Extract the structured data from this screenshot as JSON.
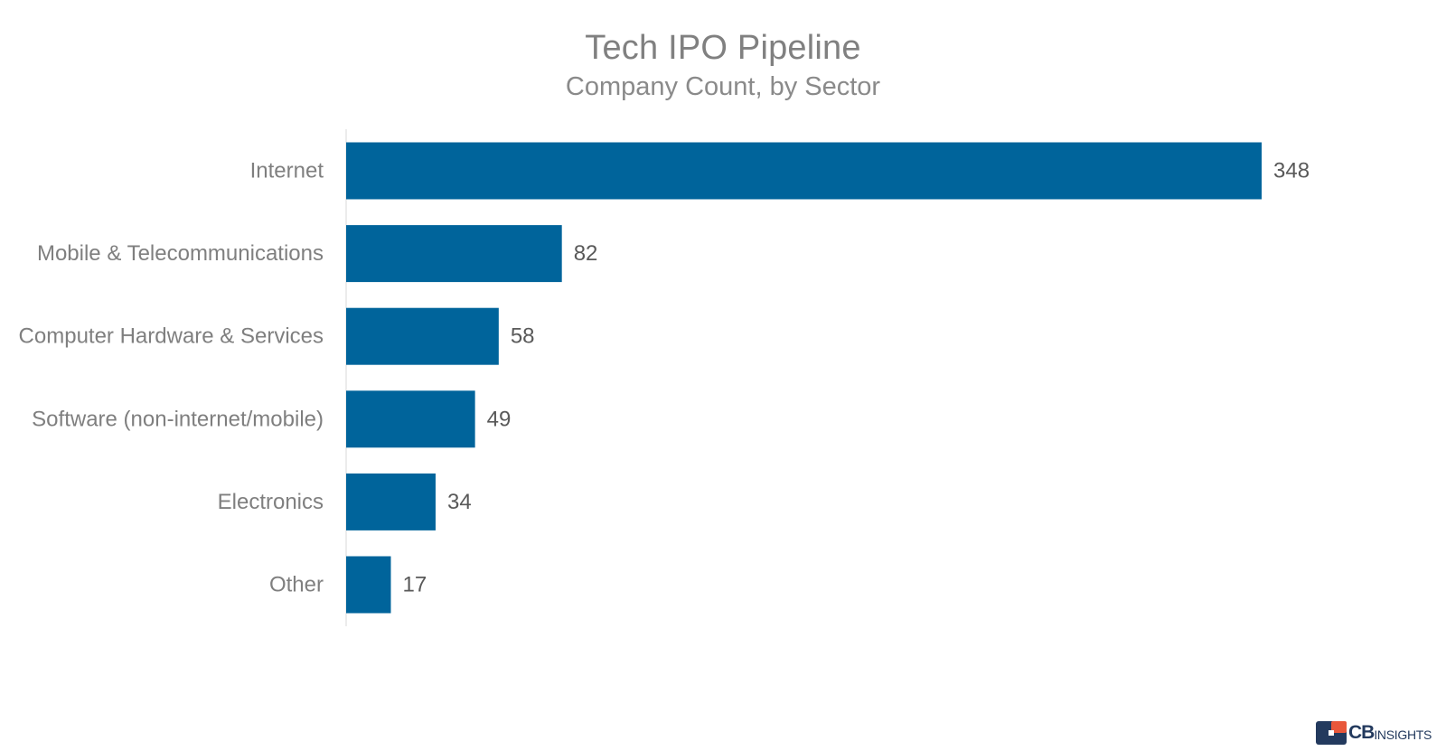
{
  "chart_data": {
    "type": "bar",
    "orientation": "horizontal",
    "title": "Tech IPO Pipeline",
    "subtitle": "Company Count, by Sector",
    "categories": [
      "Internet",
      "Mobile & Telecommunications",
      "Computer Hardware & Services",
      "Software (non-internet/mobile)",
      "Electronics",
      "Other"
    ],
    "values": [
      348,
      82,
      58,
      49,
      34,
      17
    ],
    "xlim": [
      0,
      348
    ],
    "data_labels": true,
    "grid": false,
    "legend": "none",
    "bar_color": "#00649b",
    "label_color": "#7f7f7f",
    "value_label_color": "#595959"
  },
  "logo": {
    "brand_bold": "CB",
    "brand_rest": "INSIGHTS",
    "color_primary": "#233a5e",
    "color_accent": "#e8573b"
  }
}
